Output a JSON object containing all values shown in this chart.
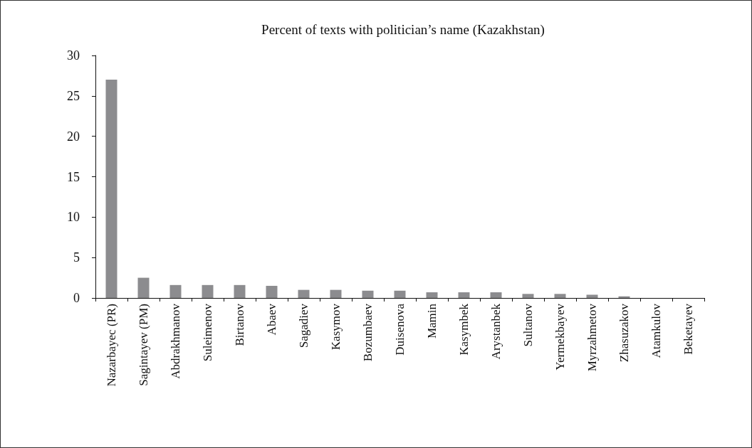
{
  "chart_data": {
    "type": "bar",
    "title": "Percent of texts with politician’s name (Kazakhstan)",
    "categories": [
      "Nazarbayec (PR)",
      "Sagintayev (PM)",
      "Abdrakhmanov",
      "Suleimenov",
      "Birtanov",
      "Abaev",
      "Sagadiev",
      "Kasymov",
      "Bozumbaev",
      "Duisenova",
      "Mamin",
      "Kasymbek",
      "Arystanbek",
      "Sultanov",
      "Yermekbayev",
      "Myrzahmetov",
      "Zhasuzakov",
      "Atamkulov",
      "Beketayev"
    ],
    "values": [
      27,
      2.5,
      1.6,
      1.6,
      1.6,
      1.5,
      1,
      1,
      0.9,
      0.9,
      0.7,
      0.7,
      0.7,
      0.5,
      0.5,
      0.4,
      0.2,
      0,
      0
    ],
    "color": "#8c8c8f",
    "ylim": [
      0,
      30
    ],
    "yticks": [
      0,
      5,
      10,
      15,
      20,
      25,
      30
    ],
    "grid": false
  }
}
